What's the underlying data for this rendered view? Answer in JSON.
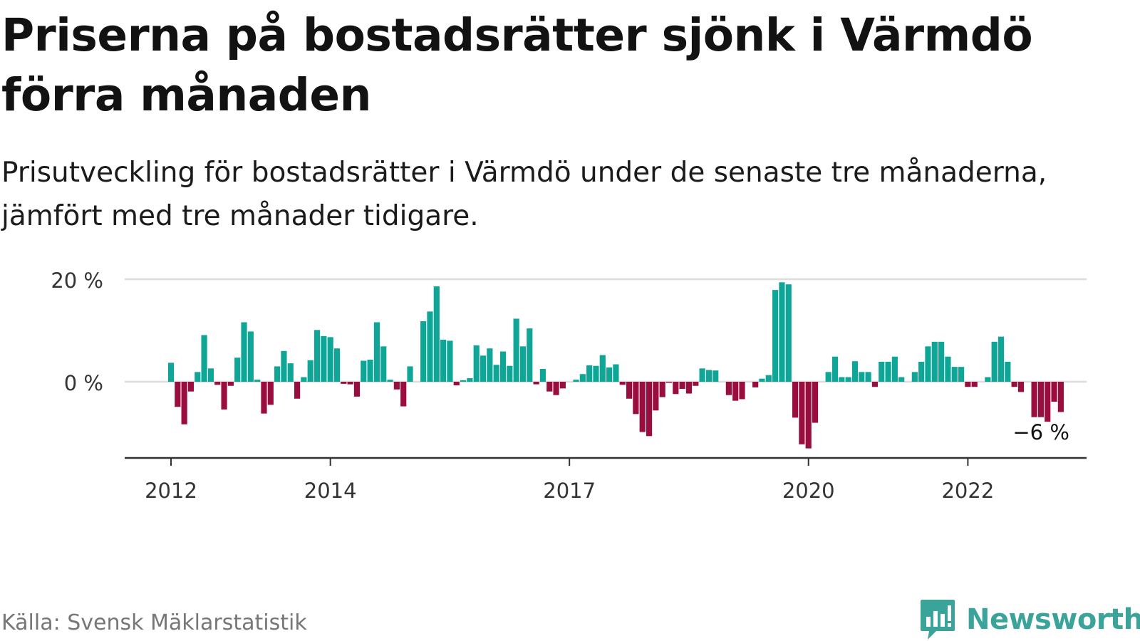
{
  "title": "Priserna på bostadsrätter sjönk i Värmdö förra månaden",
  "subtitle": "Prisutveckling för bostadsrätter i Värmdö under de senaste tre månaderna, jämfört med tre månader tidigare.",
  "source": "Källa: Svensk Mäklarstatistik",
  "brand": "Newsworthy",
  "colors": {
    "positive": "#0fa698",
    "negative": "#990e3f",
    "axis": "#333333",
    "grid": "#dddddd",
    "brand": "#3aa39a"
  },
  "chart_data": {
    "type": "bar",
    "title": "",
    "xlabel": "",
    "ylabel": "",
    "ylim": [
      -15,
      20
    ],
    "y_ticks": [
      {
        "value": 0,
        "label": "0 %"
      },
      {
        "value": 20,
        "label": "20 %"
      }
    ],
    "x_ticks": [
      {
        "index": 0,
        "label": "2012"
      },
      {
        "index": 24,
        "label": "2014"
      },
      {
        "index": 60,
        "label": "2017"
      },
      {
        "index": 96,
        "label": "2020"
      },
      {
        "index": 120,
        "label": "2022"
      }
    ],
    "grid": true,
    "annotation": {
      "index": 131,
      "label": "−6 %"
    },
    "series": [
      {
        "values": [
          3.7,
          -4.9,
          -8.3,
          -1.9,
          1.9,
          9.1,
          2.6,
          -0.6,
          -5.4,
          -0.8,
          4.7,
          11.6,
          9.8,
          0.4,
          -6.2,
          -4.5,
          3.0,
          6.0,
          3.6,
          -3.3,
          0.9,
          4.2,
          10.1,
          8.9,
          8.7,
          6.5,
          -0.4,
          -0.5,
          -2.9,
          4.1,
          4.3,
          11.6,
          6.9,
          0.4,
          -1.5,
          -4.8,
          3.0,
          0,
          11.8,
          13.7,
          18.6,
          8.2,
          8.0,
          -0.7,
          0.3,
          0.7,
          7.1,
          5.1,
          6.5,
          3.3,
          5.9,
          3.1,
          12.3,
          6.9,
          10.4,
          -0.5,
          2.5,
          -1.9,
          -2.6,
          -1.3,
          0,
          0.4,
          1.5,
          3.2,
          3.1,
          5.2,
          2.8,
          3.4,
          -0.6,
          -3.3,
          -6.3,
          -9.8,
          -10.6,
          -5.6,
          -3.0,
          -0.2,
          -2.4,
          -1.4,
          -2.3,
          -0.8,
          2.6,
          2.3,
          2.2,
          0,
          -2.6,
          -3.7,
          -3.4,
          0,
          -1.1,
          0.6,
          1.3,
          17.9,
          19.4,
          19.0,
          -7.0,
          -12.2,
          -13.0,
          -8.0,
          0,
          1.9,
          4.9,
          0.9,
          0.9,
          4.0,
          1.9,
          1.9,
          -1.0,
          3.9,
          3.9,
          4.9,
          0.9,
          0,
          1.9,
          3.9,
          6.9,
          7.8,
          7.8,
          4.9,
          2.9,
          2.9,
          -1.0,
          -1.0,
          0,
          0.9,
          7.8,
          8.8,
          3.9,
          -1.0,
          -2.0,
          0,
          -6.9,
          -6.9,
          -7.8,
          -3.9,
          -5.9
        ]
      }
    ]
  }
}
